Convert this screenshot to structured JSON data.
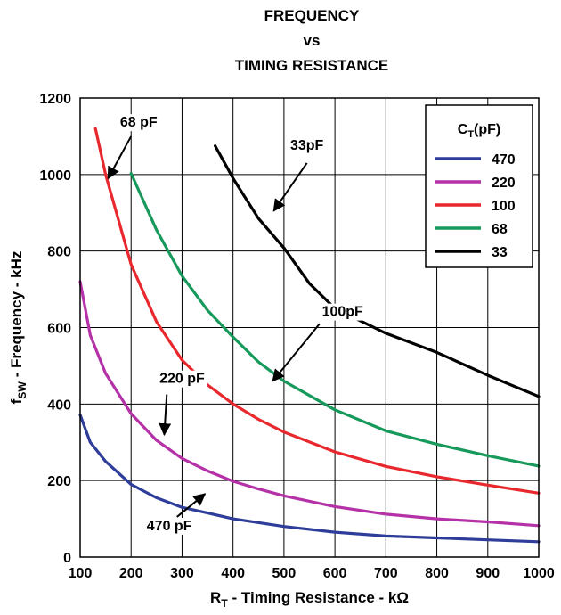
{
  "title_lines": [
    "FREQUENCY",
    "vs",
    "TIMING RESISTANCE"
  ],
  "chart_data": {
    "type": "line",
    "title": "FREQUENCY vs TIMING RESISTANCE",
    "xlabel": {
      "main": "R",
      "sub": "T",
      "rest": " - Timing Resistance - kΩ"
    },
    "ylabel": {
      "main": "f",
      "sub": "SW",
      "rest": " - Frequency - kHz"
    },
    "xlim": [
      100,
      1000
    ],
    "ylim": [
      0,
      1200
    ],
    "xticks": [
      100,
      200,
      300,
      400,
      500,
      600,
      700,
      800,
      900,
      1000
    ],
    "yticks": [
      0,
      200,
      400,
      600,
      800,
      1000,
      1200
    ],
    "grid": true,
    "legend": {
      "title_main": "C",
      "title_sub": "T",
      "title_rest": "(pF)",
      "position": "top-right",
      "entries": [
        {
          "label": "470",
          "color": "#2e3d9a"
        },
        {
          "label": "220",
          "color": "#b531a8"
        },
        {
          "label": "100",
          "color": "#e8282d"
        },
        {
          "label": "68",
          "color": "#16995a"
        },
        {
          "label": "33",
          "color": "#000000"
        }
      ]
    },
    "series": [
      {
        "id": "s470",
        "color": "#2e3d9a",
        "x": [
          100,
          120,
          150,
          200,
          250,
          300,
          350,
          400,
          500,
          600,
          700,
          800,
          900,
          1000
        ],
        "y": [
          372,
          300,
          250,
          190,
          155,
          130,
          115,
          100,
          80,
          65,
          55,
          50,
          45,
          40
        ]
      },
      {
        "id": "s220",
        "color": "#b531a8",
        "x": [
          100,
          120,
          150,
          200,
          250,
          300,
          350,
          400,
          450,
          500,
          600,
          700,
          800,
          900,
          1000
        ],
        "y": [
          720,
          580,
          480,
          375,
          305,
          258,
          225,
          198,
          178,
          160,
          132,
          112,
          100,
          92,
          82
        ]
      },
      {
        "id": "s100",
        "color": "#e8282d",
        "x": [
          130,
          150,
          200,
          250,
          300,
          350,
          400,
          450,
          500,
          600,
          700,
          800,
          900,
          1000
        ],
        "y": [
          1120,
          1000,
          765,
          615,
          515,
          450,
          400,
          360,
          327,
          275,
          237,
          210,
          188,
          167
        ]
      },
      {
        "id": "s68",
        "color": "#16995a",
        "x": [
          200,
          250,
          300,
          350,
          400,
          450,
          500,
          600,
          700,
          800,
          900,
          1000
        ],
        "y": [
          1003,
          855,
          735,
          645,
          575,
          510,
          460,
          385,
          330,
          295,
          265,
          238
        ]
      },
      {
        "id": "s33",
        "color": "#000000",
        "x": [
          365,
          400,
          450,
          500,
          550,
          600,
          700,
          800,
          900,
          1000
        ],
        "y": [
          1075,
          990,
          885,
          808,
          715,
          650,
          585,
          535,
          475,
          420
        ]
      }
    ],
    "annotations": [
      {
        "text": "68 pF",
        "at": [
          215,
          1125
        ],
        "arrow_from": [
          200,
          1100
        ],
        "arrow_to": [
          155,
          990
        ]
      },
      {
        "text": "33pF",
        "at": [
          545,
          1065
        ],
        "arrow_from": [
          545,
          1030
        ],
        "arrow_to": [
          480,
          905
        ]
      },
      {
        "text": "100pF",
        "at": [
          615,
          630
        ],
        "arrow_from": [
          570,
          610
        ],
        "arrow_to": [
          478,
          460
        ]
      },
      {
        "text": "220 pF",
        "at": [
          300,
          455
        ],
        "arrow_from": [
          270,
          425
        ],
        "arrow_to": [
          265,
          320
        ]
      },
      {
        "text": "470 pF",
        "at": [
          275,
          70
        ],
        "arrow_from": [
          290,
          105
        ],
        "arrow_to": [
          345,
          165
        ]
      }
    ]
  }
}
